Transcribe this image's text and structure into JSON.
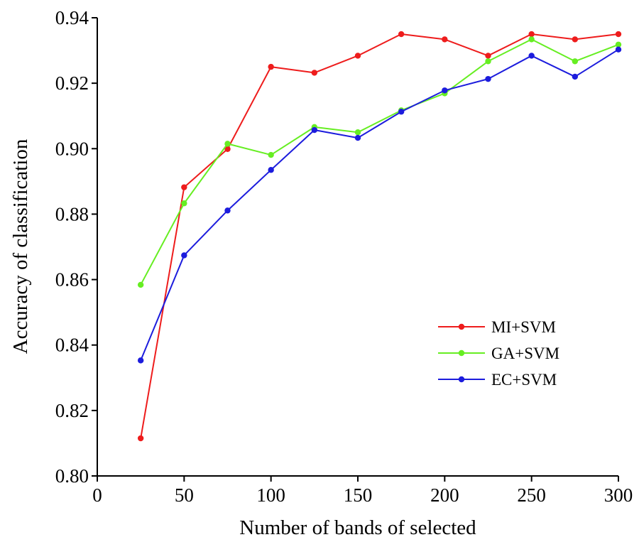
{
  "chart_data": {
    "type": "line",
    "xlabel": "Number of bands of selected",
    "ylabel": "Accuracy of classification",
    "xlim": [
      0,
      300
    ],
    "ylim": [
      0.8,
      0.94
    ],
    "xticks": [
      "0",
      "50",
      "100",
      "150",
      "200",
      "250",
      "300"
    ],
    "yticks": [
      "0.80",
      "0.82",
      "0.84",
      "0.86",
      "0.88",
      "0.90",
      "0.92",
      "0.94"
    ],
    "grid": false,
    "legend_position": "right",
    "x": [
      25,
      50,
      75,
      100,
      125,
      150,
      175,
      200,
      225,
      250,
      275,
      300
    ],
    "series": [
      {
        "name": "MI+SVM",
        "color": "#ee1c1c",
        "values": [
          0.8115,
          0.8882,
          0.8999,
          0.925,
          0.9232,
          0.9284,
          0.935,
          0.9334,
          0.9284,
          0.935,
          0.9334,
          0.935
        ]
      },
      {
        "name": "GA+SVM",
        "color": "#66ee22",
        "values": [
          0.8584,
          0.8833,
          0.9015,
          0.8981,
          0.9066,
          0.905,
          0.9117,
          0.9169,
          0.9267,
          0.9334,
          0.9267,
          0.9318
        ]
      },
      {
        "name": "EC+SVM",
        "color": "#1c1cdd",
        "values": [
          0.8353,
          0.8674,
          0.8811,
          0.8935,
          0.9057,
          0.9033,
          0.9113,
          0.9178,
          0.9213,
          0.9284,
          0.922,
          0.9303
        ]
      }
    ]
  }
}
